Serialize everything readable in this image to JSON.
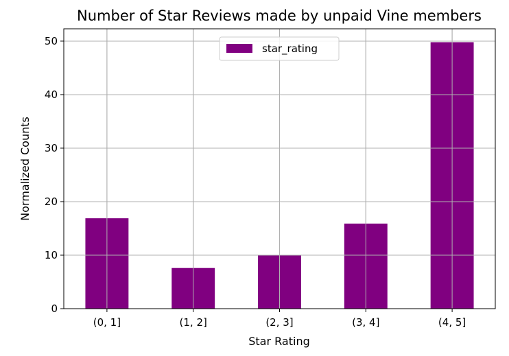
{
  "chart_data": {
    "type": "bar",
    "title": "Number of Star Reviews made by unpaid Vine members",
    "xlabel": "Star Rating",
    "ylabel": "Normalized Counts",
    "categories": [
      "(0, 1]",
      "(1, 2]",
      "(2, 3]",
      "(3, 4]",
      "(4, 5]"
    ],
    "series": [
      {
        "name": "star_rating",
        "color": "#800080",
        "values": [
          16.9,
          7.6,
          10.0,
          15.9,
          49.8
        ]
      }
    ],
    "ylim": [
      0,
      52.3
    ],
    "yticks": [
      0,
      10,
      20,
      30,
      40,
      50
    ],
    "grid": true,
    "legend_position": "top-center"
  }
}
